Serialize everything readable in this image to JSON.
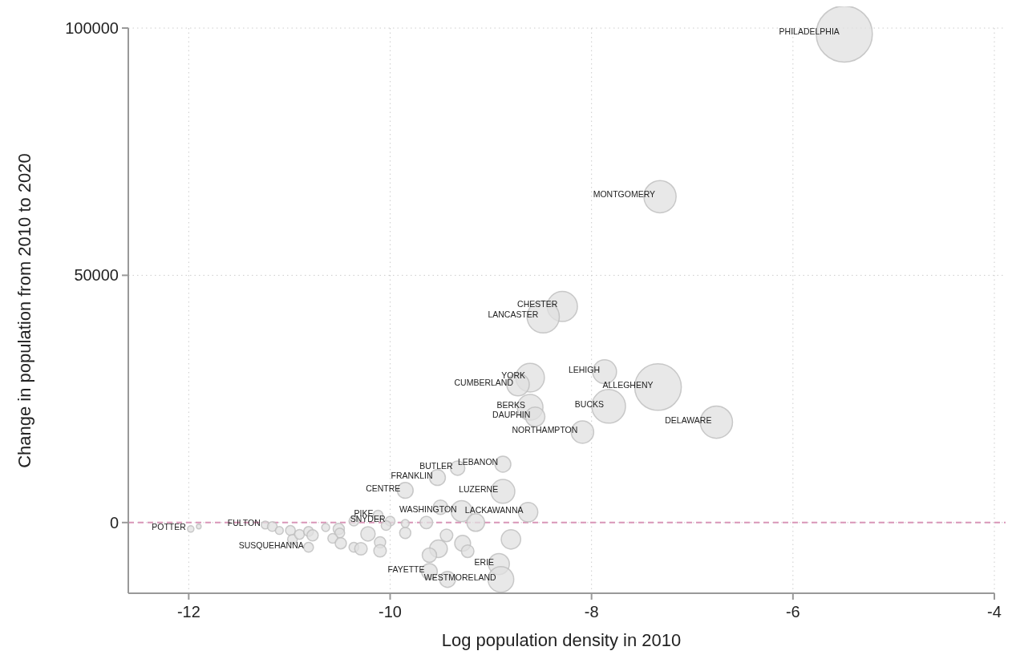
{
  "chart_data": {
    "type": "bubble",
    "xlabel": "Log population density in 2010",
    "ylabel": "Change in population from 2010 to 2020",
    "xlim": [
      -12.6,
      -4
    ],
    "ylim": [
      -14300,
      100000
    ],
    "xticks": [
      -12,
      -10,
      -8,
      -6,
      -4
    ],
    "yticks": [
      0,
      50000,
      100000
    ],
    "grid": true,
    "marker": "circle",
    "series": [
      {
        "color": "#e0e0e0",
        "x": [
          -5.49,
          -7.32,
          -8.29,
          -8.48,
          -8.61,
          -8.73,
          -8.61,
          -8.56,
          -8.09,
          -7.87,
          -7.34,
          -7.83,
          -6.76,
          -8.88,
          -9.33,
          -9.53,
          -9.85,
          -8.88,
          -9.29,
          -8.63,
          -8.92,
          -8.9,
          -9.61,
          -11.98,
          -11.24,
          -10.81,
          -10.12,
          -10.0,
          -11.9,
          -11.17,
          -11.1,
          -10.99,
          -10.97,
          -10.9,
          -10.81,
          -10.77,
          -10.64,
          -10.51,
          -10.5,
          -10.57,
          -10.49,
          -10.36,
          -10.29,
          -10.22,
          -10.1,
          -10.1,
          -9.85,
          -10.36,
          -10.04,
          -9.85,
          -9.64,
          -9.5,
          -9.44,
          -9.28,
          -9.23,
          -9.52,
          -9.61,
          -8.8,
          -9.43,
          -9.15
        ],
        "values": [
          98800,
          65900,
          43700,
          41600,
          29300,
          27900,
          23300,
          21400,
          18300,
          30500,
          27400,
          23500,
          20300,
          11800,
          11000,
          9100,
          6500,
          6300,
          2300,
          2100,
          -8400,
          -11500,
          -9900,
          -1300,
          -500,
          -5000,
          1500,
          300,
          -800,
          -800,
          -1600,
          -1600,
          -3400,
          -2400,
          -1800,
          -2600,
          -1000,
          -1300,
          -2100,
          -3200,
          -4200,
          -5000,
          -5300,
          -2300,
          -4000,
          -5700,
          -2100,
          300,
          -600,
          -200,
          0,
          3100,
          -2600,
          -4200,
          -5800,
          -5300,
          -6600,
          -3400,
          -11500,
          0
        ],
        "sizes": [
          1,
          0.33,
          0.29,
          0.33,
          0.26,
          0.16,
          0.21,
          0.12,
          0.16,
          0.18,
          0.69,
          0.36,
          0.33,
          0.08,
          0.066,
          0.08,
          0.08,
          0.18,
          0.14,
          0.12,
          0.14,
          0.21,
          0.08,
          0.013,
          0.02,
          0.03,
          0.03,
          0.03,
          0.007,
          0.03,
          0.02,
          0.03,
          0.03,
          0.03,
          0.03,
          0.04,
          0.02,
          0.04,
          0.03,
          0.03,
          0.04,
          0.03,
          0.05,
          0.066,
          0.04,
          0.05,
          0.04,
          0.03,
          0.03,
          0.02,
          0.05,
          0.066,
          0.05,
          0.08,
          0.05,
          0.1,
          0.066,
          0.12,
          0.08,
          0.1
        ]
      }
    ],
    "ref_lines": [
      {
        "axis": "y",
        "value": 0,
        "color": "#d996b8",
        "line_style": "dashed"
      }
    ],
    "annotations": [
      {
        "text": "PHILADELPHIA",
        "x": -5.49,
        "y": 98800
      },
      {
        "text": "MONTGOMERY",
        "x": -7.32,
        "y": 65900
      },
      {
        "text": "CHESTER",
        "x": -8.29,
        "y": 43700
      },
      {
        "text": "LANCASTER",
        "x": -8.48,
        "y": 41600
      },
      {
        "text": "YORK",
        "x": -8.61,
        "y": 29300
      },
      {
        "text": "CUMBERLAND",
        "x": -8.73,
        "y": 27900
      },
      {
        "text": "BERKS",
        "x": -8.61,
        "y": 23300
      },
      {
        "text": "DAUPHIN",
        "x": -8.56,
        "y": 21400
      },
      {
        "text": "NORTHAMPTON",
        "x": -8.09,
        "y": 18300
      },
      {
        "text": "LEHIGH",
        "x": -7.87,
        "y": 30500
      },
      {
        "text": "ALLEGHENY",
        "x": -7.34,
        "y": 27400
      },
      {
        "text": "BUCKS",
        "x": -7.83,
        "y": 23500
      },
      {
        "text": "DELAWARE",
        "x": -6.76,
        "y": 20300
      },
      {
        "text": "LEBANON",
        "x": -8.88,
        "y": 11800
      },
      {
        "text": "BUTLER",
        "x": -9.33,
        "y": 11000
      },
      {
        "text": "FRANKLIN",
        "x": -9.53,
        "y": 9100
      },
      {
        "text": "CENTRE",
        "x": -9.85,
        "y": 6500
      },
      {
        "text": "LUZERNE",
        "x": -8.88,
        "y": 6300
      },
      {
        "text": "WASHINGTON",
        "x": -9.29,
        "y": 2300
      },
      {
        "text": "LACKAWANNA",
        "x": -8.63,
        "y": 2100
      },
      {
        "text": "ERIE",
        "x": -8.92,
        "y": -8400
      },
      {
        "text": "WESTMORELAND",
        "x": -8.9,
        "y": -11500
      },
      {
        "text": "FAYETTE",
        "x": -9.61,
        "y": -9900
      },
      {
        "text": "POTTER",
        "x": -11.98,
        "y": -1300
      },
      {
        "text": "FULTON",
        "x": -11.24,
        "y": -500
      },
      {
        "text": "SUSQUEHANNA",
        "x": -10.81,
        "y": -5000
      },
      {
        "text": "PIKE",
        "x": -10.12,
        "y": 1500
      },
      {
        "text": "SNYDER",
        "x": -10.0,
        "y": 300
      }
    ]
  }
}
